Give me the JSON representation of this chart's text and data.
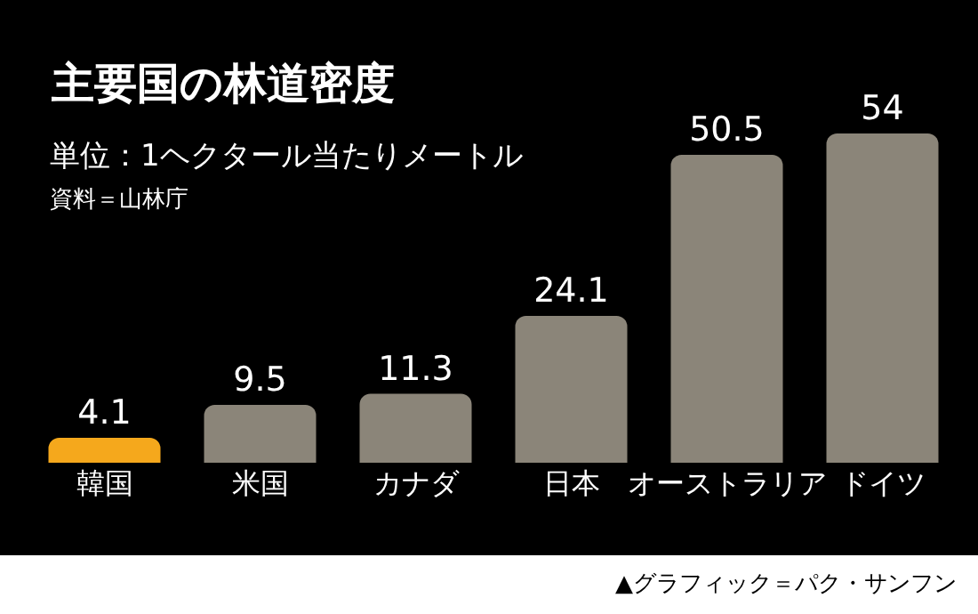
{
  "chart_data": {
    "type": "bar",
    "title": "主要国の林道密度",
    "subtitle": "単位：1ヘクタール当たりメートル",
    "annotations": [
      "資料＝山林庁",
      "▲グラフィック＝パク・サンフン"
    ],
    "categories": [
      "韓国",
      "米国",
      "カナダ",
      "日本",
      "オーストラリア",
      "ドイツ"
    ],
    "values": [
      4.1,
      9.5,
      11.3,
      24.1,
      50.5,
      54
    ],
    "colors": [
      "#f5a81c",
      "#8b8579",
      "#8b8579",
      "#8b8579",
      "#8b8579",
      "#8b8579"
    ],
    "data_labels": true
  }
}
